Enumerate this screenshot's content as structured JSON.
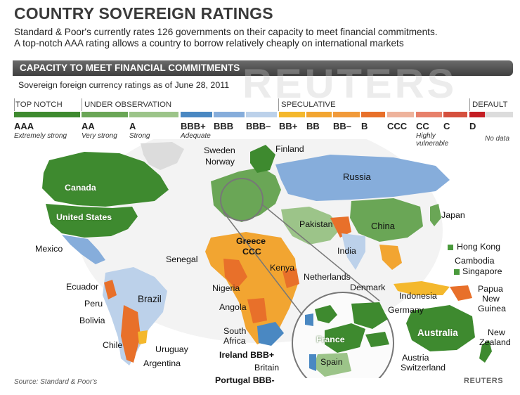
{
  "header": {
    "title": "COUNTRY SOVEREIGN RATINGS",
    "subtitle_line1": "Standard & Poor's currently rates 126 governments on their capacity to meet financial commitments.",
    "subtitle_line2": "A top-notch AAA rating allows a country to borrow relatively cheaply on international markets"
  },
  "section": {
    "bar_title": "CAPACITY TO MEET FINANCIAL COMMITMENTS",
    "as_of": "Sovereign foreign currency ratings as of June 28, 2011"
  },
  "legend": {
    "categories": [
      "TOP NOTCH",
      "UNDER OBSERVATION",
      "SPECULATIVE",
      "DEFAULT"
    ],
    "ratings": [
      {
        "label": "AAA",
        "desc": "Extremely strong",
        "color": "#3e8a2f"
      },
      {
        "label": "AA",
        "desc": "Very strong",
        "color": "#6aa656"
      },
      {
        "label": "A",
        "desc": "Strong",
        "color": "#9cc489"
      },
      {
        "label": "BBB+",
        "desc": "Adequate",
        "color": "#4a88c2"
      },
      {
        "label": "BBB",
        "desc": "",
        "color": "#86addb"
      },
      {
        "label": "BBB–",
        "desc": "",
        "color": "#bcd1ea"
      },
      {
        "label": "BB+",
        "desc": "",
        "color": "#f4b82d"
      },
      {
        "label": "BB",
        "desc": "",
        "color": "#f2a531"
      },
      {
        "label": "BB–",
        "desc": "",
        "color": "#f19a3a"
      },
      {
        "label": "B",
        "desc": "",
        "color": "#e8702a"
      },
      {
        "label": "CCC",
        "desc": "",
        "color": "#eeb39c"
      },
      {
        "label": "CC",
        "desc": "Highly vulnerable",
        "color": "#e7806a"
      },
      {
        "label": "C",
        "desc": "",
        "color": "#d5503e"
      },
      {
        "label": "D",
        "desc": "",
        "color": "#c41e24"
      },
      {
        "label": "",
        "desc": "No data",
        "color": "#dcdcdc"
      }
    ]
  },
  "map": {
    "labels": {
      "canada": "Canada",
      "united_states": "United States",
      "mexico": "Mexico",
      "ecuador": "Ecuador",
      "peru": "Peru",
      "brazil": "Brazil",
      "bolivia": "Bolivia",
      "chile": "Chile",
      "uruguay": "Uruguay",
      "argentina": "Argentina",
      "sweden": "Sweden",
      "finland": "Finland",
      "norway": "Norway",
      "russia": "Russia",
      "greece": "Greece",
      "greece_rating": "CCC",
      "pakistan": "Pakistan",
      "china": "China",
      "japan": "Japan",
      "india": "India",
      "hong_kong": "Hong Kong",
      "cambodia": "Cambodia",
      "singapore": "Singapore",
      "senegal": "Senegal",
      "kenya": "Kenya",
      "netherlands": "Netherlands",
      "denmark": "Denmark",
      "nigeria": "Nigeria",
      "indonesia": "Indonesia",
      "papua": "Papua",
      "new": "New",
      "guinea": "Guinea",
      "angola": "Angola",
      "germany": "Germany",
      "australia": "Australia",
      "south": "South",
      "africa": "Africa",
      "new_zealand_1": "New",
      "new_zealand_2": "Zealand",
      "ireland": "Ireland BBB+",
      "france": "France",
      "britain": "Britain",
      "spain": "Spain",
      "austria": "Austria",
      "switzerland": "Switzerland",
      "portugal": "Portugal BBB-"
    }
  },
  "footer": {
    "source": "Source: Standard & Poor's",
    "brand": "REUTERS",
    "watermark": "REUTERS"
  }
}
